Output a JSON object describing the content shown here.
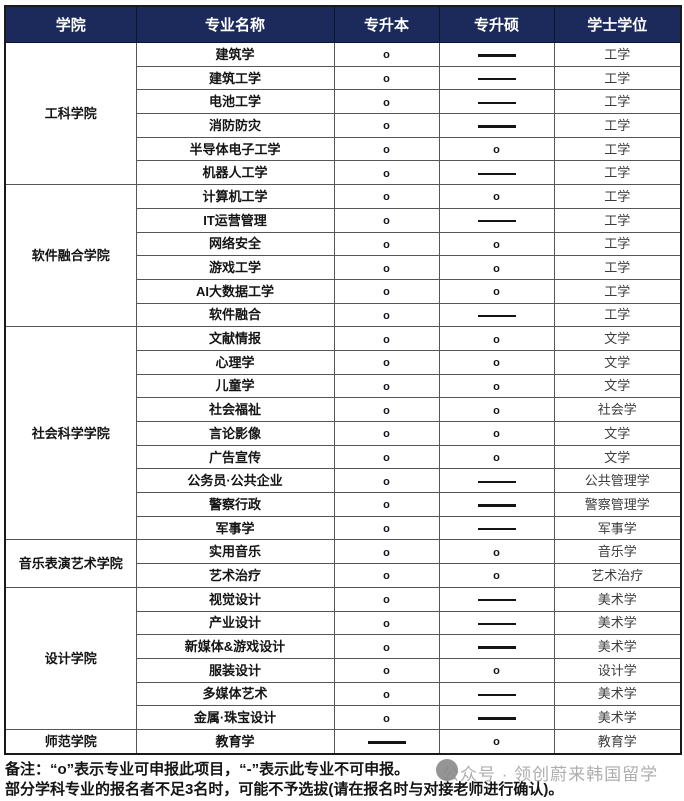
{
  "table": {
    "columns": [
      "学院",
      "专业名称",
      "专升本",
      "专升硕",
      "学士学位"
    ],
    "symbols": {
      "available": "o",
      "unavailable": "-"
    },
    "groups": [
      {
        "college": "工科学院",
        "majors": [
          {
            "name": "建筑学",
            "zsb": "o",
            "zss": "-",
            "degree": "工学"
          },
          {
            "name": "建筑工学",
            "zsb": "o",
            "zss": "-",
            "degree": "工学"
          },
          {
            "name": "电池工学",
            "zsb": "o",
            "zss": "-",
            "degree": "工学"
          },
          {
            "name": "消防防灾",
            "zsb": "o",
            "zss": "-",
            "degree": "工学"
          },
          {
            "name": "半导体电子工学",
            "zsb": "o",
            "zss": "o",
            "degree": "工学"
          },
          {
            "name": "机器人工学",
            "zsb": "o",
            "zss": "-",
            "degree": "工学"
          }
        ]
      },
      {
        "college": "软件融合学院",
        "majors": [
          {
            "name": "计算机工学",
            "zsb": "o",
            "zss": "o",
            "degree": "工学"
          },
          {
            "name": "IT运营管理",
            "zsb": "o",
            "zss": "-",
            "degree": "工学"
          },
          {
            "name": "网络安全",
            "zsb": "o",
            "zss": "o",
            "degree": "工学"
          },
          {
            "name": "游戏工学",
            "zsb": "o",
            "zss": "o",
            "degree": "工学"
          },
          {
            "name": "AI大数据工学",
            "zsb": "o",
            "zss": "o",
            "degree": "工学"
          },
          {
            "name": "软件融合",
            "zsb": "o",
            "zss": "-",
            "degree": "工学"
          }
        ]
      },
      {
        "college": "社会科学学院",
        "majors": [
          {
            "name": "文献情报",
            "zsb": "o",
            "zss": "o",
            "degree": "文学"
          },
          {
            "name": "心理学",
            "zsb": "o",
            "zss": "o",
            "degree": "文学"
          },
          {
            "name": "儿童学",
            "zsb": "o",
            "zss": "o",
            "degree": "文学"
          },
          {
            "name": "社会福祉",
            "zsb": "o",
            "zss": "o",
            "degree": "社会学"
          },
          {
            "name": "言论影像",
            "zsb": "o",
            "zss": "o",
            "degree": "文学"
          },
          {
            "name": "广告宣传",
            "zsb": "o",
            "zss": "o",
            "degree": "文学"
          },
          {
            "name": "公务员·公共企业",
            "zsb": "o",
            "zss": "-",
            "degree": "公共管理学"
          },
          {
            "name": "警察行政",
            "zsb": "o",
            "zss": "-",
            "degree": "警察管理学"
          },
          {
            "name": "军事学",
            "zsb": "o",
            "zss": "-",
            "degree": "军事学"
          }
        ]
      },
      {
        "college": "音乐表演艺术学院",
        "majors": [
          {
            "name": "实用音乐",
            "zsb": "o",
            "zss": "o",
            "degree": "音乐学"
          },
          {
            "name": "艺术治疗",
            "zsb": "o",
            "zss": "o",
            "degree": "艺术治疗"
          }
        ]
      },
      {
        "college": "设计学院",
        "majors": [
          {
            "name": "视觉设计",
            "zsb": "o",
            "zss": "-",
            "degree": "美术学"
          },
          {
            "name": "产业设计",
            "zsb": "o",
            "zss": "-",
            "degree": "美术学"
          },
          {
            "name": "新媒体&游戏设计",
            "zsb": "o",
            "zss": "-",
            "degree": "美术学"
          },
          {
            "name": "服装设计",
            "zsb": "o",
            "zss": "o",
            "degree": "设计学"
          },
          {
            "name": "多媒体艺术",
            "zsb": "o",
            "zss": "-",
            "degree": "美术学"
          },
          {
            "name": "金属·珠宝设计",
            "zsb": "o",
            "zss": "-",
            "degree": "美术学"
          }
        ]
      },
      {
        "college": "师范学院",
        "majors": [
          {
            "name": "教育学",
            "zsb": "-",
            "zss": "o",
            "degree": "教育学"
          }
        ]
      }
    ]
  },
  "notes": {
    "label": "备注：",
    "line1": "“o”表示专业可申报此项目，“-”表示此专业不可申报。",
    "line2": "部分学科专业的报名者不足3名时，可能不予选拔(请在报名时与对接老师进行确认)。"
  },
  "watermark": {
    "text": "公众号 · 领创蔚来韩国留学"
  },
  "colors": {
    "header_bg": "#1b2a5a",
    "header_text": "#ffffff",
    "body_text": "#1a1a1a",
    "watermark_text": "#aeaeae"
  }
}
